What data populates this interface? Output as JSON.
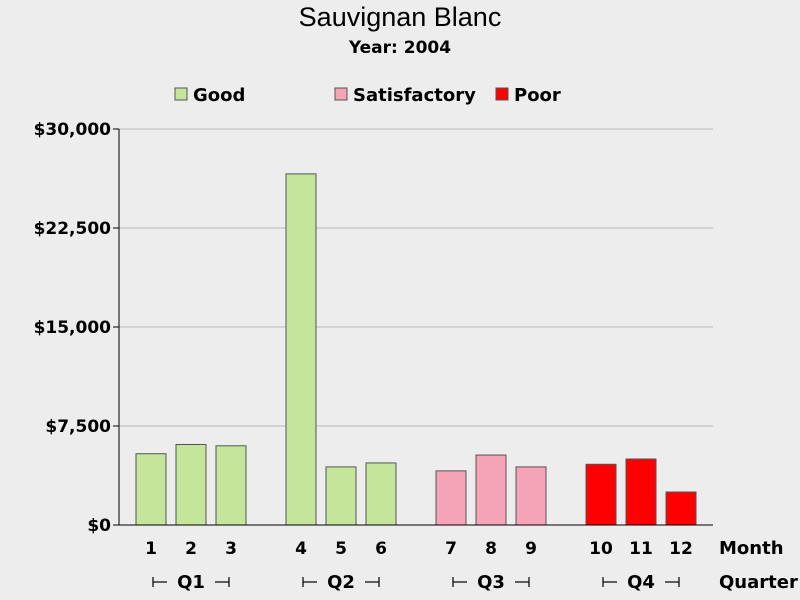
{
  "chart_data": {
    "type": "bar",
    "title": "Sauvignan Blanc",
    "subtitle": "Year: 2004",
    "legend": [
      {
        "label": "Good",
        "color": "#c5e59a"
      },
      {
        "label": "Satisfactory",
        "color": "#f5a3b6"
      },
      {
        "label": "Poor",
        "color": "#ff0000"
      }
    ],
    "legend_position": "top",
    "yticks": [
      "$0",
      "$7,500",
      "$15,000",
      "$22,500",
      "$30,000"
    ],
    "ylim": [
      0,
      30000
    ],
    "grid": true,
    "xlabel": "Month",
    "group_label": "Quarter",
    "groups": [
      {
        "label": "Q1",
        "months": [
          "1",
          "2",
          "3"
        ],
        "values": [
          5400,
          6100,
          6000
        ],
        "rating": "Good"
      },
      {
        "label": "Q2",
        "months": [
          "4",
          "5",
          "6"
        ],
        "values": [
          26600,
          4400,
          4700
        ],
        "rating": "Good"
      },
      {
        "label": "Q3",
        "months": [
          "7",
          "8",
          "9"
        ],
        "values": [
          4100,
          5300,
          4400
        ],
        "rating": "Satisfactory"
      },
      {
        "label": "Q4",
        "months": [
          "10",
          "11",
          "12"
        ],
        "values": [
          4600,
          5000,
          2500
        ],
        "rating": "Poor"
      }
    ]
  }
}
